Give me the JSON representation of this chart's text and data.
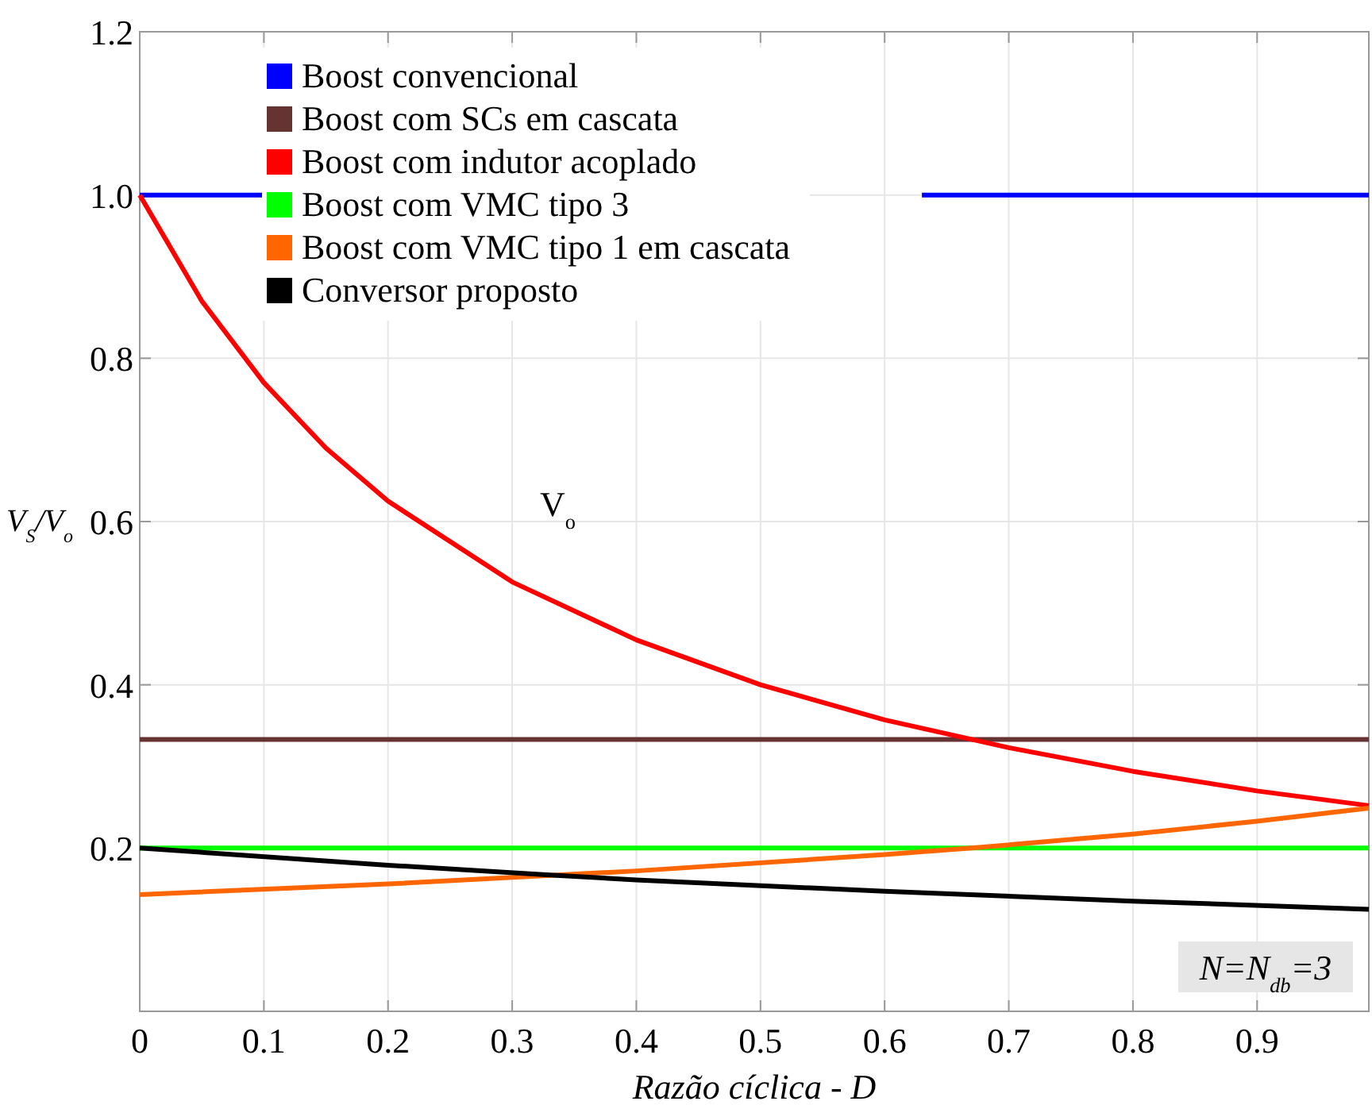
{
  "chart_data": {
    "type": "line",
    "xlabel": "Razão cíclica - D",
    "ylabel": "V$_{S}$/V$_{o}$",
    "xlim": [
      0,
      0.99
    ],
    "xticks": [
      0,
      0.1,
      0.2,
      0.3,
      0.4,
      0.5,
      0.6,
      0.7,
      0.8,
      0.9
    ],
    "ylim": [
      0,
      1.2
    ],
    "yticks": [
      0.2,
      0.4,
      0.6,
      0.8,
      {
        "value": 1.0,
        "label": "1.0"
      },
      1.2
    ],
    "grid": true,
    "legend": "top",
    "line_style": "solid",
    "annotations": [
      "V$_{o}$",
      "N=N$_{db}$=3"
    ],
    "series": [
      {
        "name": "Boost convencional",
        "color": "#0000ff",
        "x": [
          0,
          0.1,
          0.37,
          0.63,
          0.99
        ],
        "values": [
          1.0,
          1.0,
          null,
          1.0,
          1.0
        ]
      },
      {
        "name": "Boost com SCs em cascata",
        "color": "#663333",
        "x": [
          0,
          0.99
        ],
        "values": [
          0.333,
          0.333
        ]
      },
      {
        "name": "Boost com indutor acoplado",
        "color": "#ff0000",
        "x": [
          0,
          0.05,
          0.1,
          0.15,
          0.2,
          0.3,
          0.4,
          0.5,
          0.6,
          0.7,
          0.8,
          0.9,
          0.99
        ],
        "values": [
          1.0,
          0.87,
          0.77,
          0.69,
          0.625,
          0.526,
          0.455,
          0.4,
          0.357,
          0.323,
          0.294,
          0.27,
          0.252
        ]
      },
      {
        "name": "Boost com VMC tipo 3",
        "color": "#00ff00",
        "x": [
          0,
          0.99
        ],
        "values": [
          0.2,
          0.2
        ]
      },
      {
        "name": "Boost com VMC tipo 1 em cascata",
        "color": "#ff6600",
        "x": [
          0,
          0.2,
          0.4,
          0.6,
          0.67,
          0.8,
          0.9,
          0.99
        ],
        "values": [
          0.143,
          0.156,
          0.172,
          0.192,
          0.2,
          0.217,
          0.233,
          0.249
        ]
      },
      {
        "name": "Conversor proposto",
        "color": "#000000",
        "x": [
          0,
          0.2,
          0.33,
          0.4,
          0.6,
          0.8,
          0.99
        ],
        "values": [
          0.2,
          0.179,
          0.167,
          0.161,
          0.147,
          0.135,
          0.125
        ]
      }
    ]
  }
}
